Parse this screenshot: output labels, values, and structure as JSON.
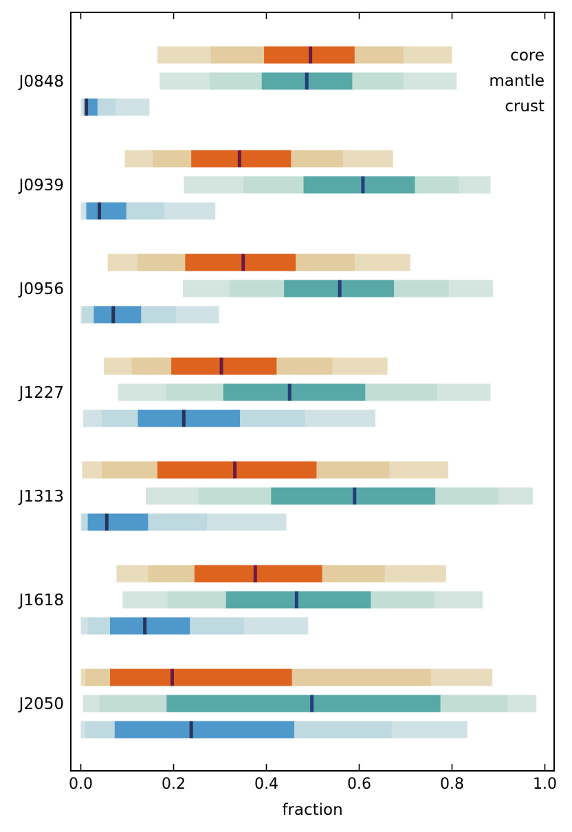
{
  "chart_data": {
    "type": "range-bar",
    "title": "",
    "xlabel": "fraction",
    "ylabel": "",
    "xlim": [
      -0.02,
      1.02
    ],
    "xticks": [
      0.0,
      0.2,
      0.4,
      0.6,
      0.8,
      1.0
    ],
    "xtick_labels": [
      "0.0",
      "0.2",
      "0.4",
      "0.6",
      "0.8",
      "1.0"
    ],
    "grid": false,
    "legend": {
      "placement": "top-right",
      "entries": [
        "core",
        "mantle",
        "crust"
      ]
    },
    "layers": [
      {
        "name": "core",
        "colors": {
          "outer": "#e8dcbc",
          "mid": "#e3cc9f",
          "inner": "#dd631e",
          "median": "#6a1b44"
        }
      },
      {
        "name": "mantle",
        "colors": {
          "outer": "#d4e5df",
          "mid": "#c2ded4",
          "inner": "#58a8a8",
          "median": "#243d79"
        }
      },
      {
        "name": "crust",
        "colors": {
          "outer": "#d0e2e6",
          "mid": "#bed9e0",
          "inner": "#4f98cb",
          "median": "#2a3458"
        }
      }
    ],
    "planets": [
      {
        "name": "J0848",
        "core": {
          "outer": [
            0.165,
            0.8
          ],
          "mid": [
            0.28,
            0.695
          ],
          "inner": [
            0.395,
            0.59
          ],
          "median": 0.495
        },
        "mantle": {
          "outer": [
            0.17,
            0.81
          ],
          "mid": [
            0.278,
            0.695
          ],
          "inner": [
            0.39,
            0.585
          ],
          "median": 0.487
        },
        "crust": {
          "outer": [
            0.0,
            0.148
          ],
          "mid": [
            0.005,
            0.075
          ],
          "inner": [
            0.008,
            0.036
          ],
          "median": 0.012
        }
      },
      {
        "name": "J0939",
        "core": {
          "outer": [
            0.095,
            0.673
          ],
          "mid": [
            0.155,
            0.565
          ],
          "inner": [
            0.238,
            0.453
          ],
          "median": 0.342
        },
        "mantle": {
          "outer": [
            0.222,
            0.883
          ],
          "mid": [
            0.35,
            0.815
          ],
          "inner": [
            0.48,
            0.72
          ],
          "median": 0.608
        },
        "crust": {
          "outer": [
            0.0,
            0.29
          ],
          "mid": [
            0.01,
            0.18
          ],
          "inner": [
            0.012,
            0.098
          ],
          "median": 0.04
        }
      },
      {
        "name": "J0956",
        "core": {
          "outer": [
            0.058,
            0.71
          ],
          "mid": [
            0.122,
            0.59
          ],
          "inner": [
            0.225,
            0.463
          ],
          "median": 0.35
        },
        "mantle": {
          "outer": [
            0.22,
            0.888
          ],
          "mid": [
            0.32,
            0.793
          ],
          "inner": [
            0.438,
            0.675
          ],
          "median": 0.558
        },
        "crust": {
          "outer": [
            0.0,
            0.298
          ],
          "mid": [
            0.003,
            0.205
          ],
          "inner": [
            0.028,
            0.13
          ],
          "median": 0.07
        }
      },
      {
        "name": "J1227",
        "core": {
          "outer": [
            0.05,
            0.661
          ],
          "mid": [
            0.11,
            0.542
          ],
          "inner": [
            0.195,
            0.422
          ],
          "median": 0.303
        },
        "mantle": {
          "outer": [
            0.08,
            0.883
          ],
          "mid": [
            0.183,
            0.768
          ],
          "inner": [
            0.307,
            0.613
          ],
          "median": 0.45
        },
        "crust": {
          "outer": [
            0.005,
            0.635
          ],
          "mid": [
            0.045,
            0.483
          ],
          "inner": [
            0.123,
            0.343
          ],
          "median": 0.222
        }
      },
      {
        "name": "J1313",
        "core": {
          "outer": [
            0.003,
            0.792
          ],
          "mid": [
            0.045,
            0.665
          ],
          "inner": [
            0.165,
            0.508
          ],
          "median": 0.332
        },
        "mantle": {
          "outer": [
            0.14,
            0.974
          ],
          "mid": [
            0.253,
            0.9
          ],
          "inner": [
            0.41,
            0.764
          ],
          "median": 0.59
        },
        "crust": {
          "outer": [
            0.0,
            0.443
          ],
          "mid": [
            0.002,
            0.272
          ],
          "inner": [
            0.015,
            0.145
          ],
          "median": 0.056
        }
      },
      {
        "name": "J1618",
        "core": {
          "outer": [
            0.077,
            0.787
          ],
          "mid": [
            0.145,
            0.655
          ],
          "inner": [
            0.245,
            0.52
          ],
          "median": 0.376
        },
        "mantle": {
          "outer": [
            0.09,
            0.866
          ],
          "mid": [
            0.187,
            0.762
          ],
          "inner": [
            0.313,
            0.625
          ],
          "median": 0.465
        },
        "crust": {
          "outer": [
            0.0,
            0.49
          ],
          "mid": [
            0.015,
            0.352
          ],
          "inner": [
            0.063,
            0.235
          ],
          "median": 0.138
        }
      },
      {
        "name": "J2050",
        "core": {
          "outer": [
            0.0,
            0.887
          ],
          "mid": [
            0.01,
            0.755
          ],
          "inner": [
            0.063,
            0.455
          ],
          "median": 0.197
        },
        "mantle": {
          "outer": [
            0.005,
            0.982
          ],
          "mid": [
            0.04,
            0.92
          ],
          "inner": [
            0.185,
            0.775
          ],
          "median": 0.498
        },
        "crust": {
          "outer": [
            0.0,
            0.833
          ],
          "mid": [
            0.01,
            0.67
          ],
          "inner": [
            0.073,
            0.46
          ],
          "median": 0.238
        }
      }
    ]
  }
}
